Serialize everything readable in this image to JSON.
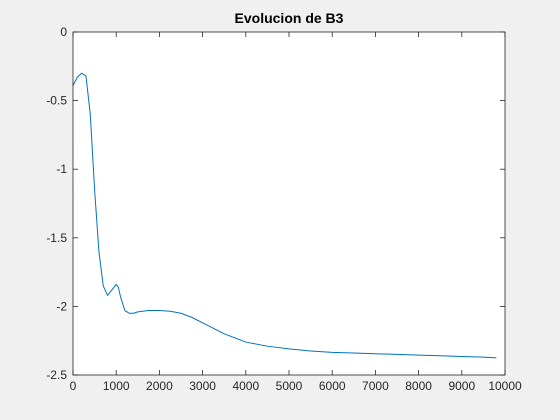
{
  "chart_data": {
    "type": "line",
    "title": "Evolucion de B3",
    "xlabel": "",
    "ylabel": "",
    "xlim": [
      0,
      10000
    ],
    "ylim": [
      -2.5,
      0
    ],
    "xticks": [
      0,
      1000,
      2000,
      3000,
      4000,
      5000,
      6000,
      7000,
      8000,
      9000,
      10000
    ],
    "yticks": [
      0,
      -0.5,
      -1,
      -1.5,
      -2,
      -2.5
    ],
    "xtick_labels": [
      "0",
      "1000",
      "2000",
      "3000",
      "4000",
      "5000",
      "6000",
      "7000",
      "8000",
      "9000",
      "10000"
    ],
    "ytick_labels": [
      "0",
      "-0.5",
      "-1",
      "-1.5",
      "-2",
      "-2.5"
    ],
    "grid": false,
    "colors": {
      "series": "#0072bd",
      "axes": "#262626",
      "plot_background": "#ffffff",
      "figure_background": "#f0f0f0"
    },
    "series": [
      {
        "x": [
          0,
          100,
          200,
          300,
          400,
          500,
          600,
          700,
          800,
          900,
          1000,
          1050,
          1100,
          1200,
          1300,
          1400,
          1500,
          1750,
          2000,
          2250,
          2500,
          2750,
          3000,
          3250,
          3500,
          3750,
          4000,
          4500,
          5000,
          5500,
          6000,
          6500,
          7000,
          7500,
          8000,
          8500,
          9000,
          9500,
          9800
        ],
        "y": [
          -0.39,
          -0.33,
          -0.3,
          -0.32,
          -0.6,
          -1.15,
          -1.6,
          -1.85,
          -1.92,
          -1.88,
          -1.84,
          -1.86,
          -1.93,
          -2.03,
          -2.05,
          -2.05,
          -2.04,
          -2.03,
          -2.03,
          -2.035,
          -2.05,
          -2.08,
          -2.12,
          -2.16,
          -2.2,
          -2.23,
          -2.26,
          -2.29,
          -2.31,
          -2.325,
          -2.335,
          -2.34,
          -2.345,
          -2.35,
          -2.355,
          -2.36,
          -2.365,
          -2.37,
          -2.375
        ]
      }
    ]
  }
}
